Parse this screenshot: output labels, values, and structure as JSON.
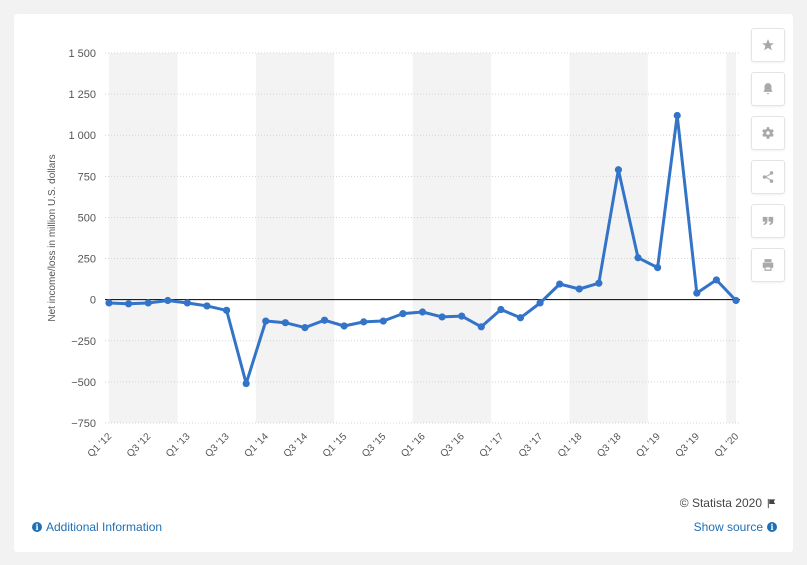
{
  "chart_data": {
    "type": "line",
    "ylabel": "Net income/loss in million U.S. dollars",
    "ylim": [
      -750,
      1500
    ],
    "yticks": [
      1500,
      1250,
      1000,
      750,
      500,
      250,
      0,
      -250,
      -500,
      -750
    ],
    "ytick_labels": [
      "1 500",
      "1 250",
      "1 000",
      "750",
      "500",
      "250",
      "0",
      "−250",
      "−500",
      "−750"
    ],
    "x_tick_labels": [
      "Q1 '12",
      "Q3 '12",
      "Q1 '13",
      "Q3 '13",
      "Q1 '14",
      "Q3 '14",
      "Q1 '15",
      "Q3 '15",
      "Q1 '16",
      "Q3 '16",
      "Q1 '17",
      "Q3 '17",
      "Q1 '18",
      "Q3 '18",
      "Q1 '19",
      "Q3 '19",
      "Q1 '20"
    ],
    "x": [
      "Q1 '12",
      "Q2 '12",
      "Q3 '12",
      "Q4 '12",
      "Q1 '13",
      "Q2 '13",
      "Q3 '13",
      "Q4 '13",
      "Q1 '14",
      "Q2 '14",
      "Q3 '14",
      "Q4 '14",
      "Q1 '15",
      "Q2 '15",
      "Q3 '15",
      "Q4 '15",
      "Q1 '16",
      "Q2 '16",
      "Q3 '16",
      "Q4 '16",
      "Q1 '17",
      "Q2 '17",
      "Q3 '17",
      "Q4 '17",
      "Q1 '18",
      "Q2 '18",
      "Q3 '18",
      "Q4 '18",
      "Q1 '19",
      "Q2 '19",
      "Q3 '19",
      "Q4 '19",
      "Q1 '20"
    ],
    "series": [
      {
        "values": [
          -20,
          -25,
          -20,
          -5,
          -20,
          -38,
          -65,
          -510,
          -130,
          -140,
          -170,
          -125,
          -160,
          -135,
          -130,
          -85,
          -75,
          -105,
          -100,
          -165,
          -60,
          -110,
          -20,
          95,
          65,
          100,
          790,
          255,
          195,
          1120,
          40,
          120,
          -5
        ],
        "color": "#3374c8"
      }
    ],
    "zero_line_color": "#000000",
    "grid": true,
    "band_color": "#f3f3f3",
    "grid_color": "#d4d4d4"
  },
  "toolbar": {
    "icons": [
      "star-icon",
      "bell-icon",
      "gear-icon",
      "share-icon",
      "quote-icon",
      "print-icon"
    ]
  },
  "footer": {
    "credit": "© Statista 2020",
    "additional_info": "Additional Information",
    "show_source": "Show source"
  }
}
